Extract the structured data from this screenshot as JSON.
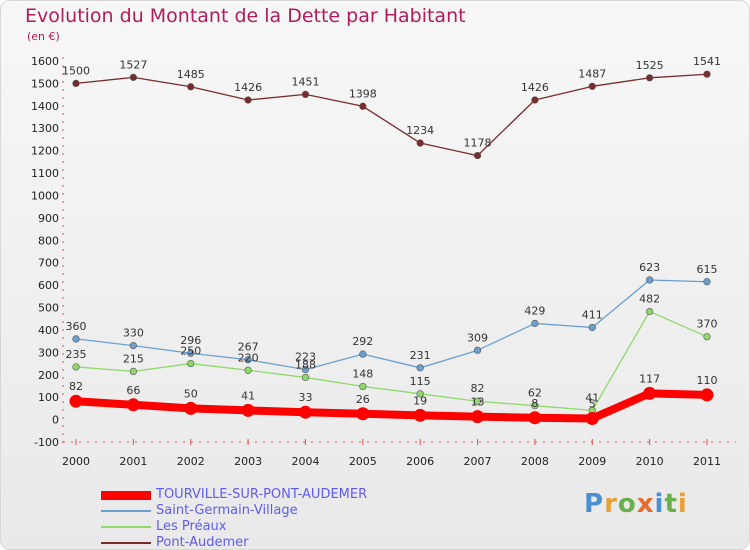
{
  "header": {
    "title": "Evolution du Montant de la Dette par Habitant",
    "subtitle": "(en €)"
  },
  "logo": {
    "text": "Proxiti",
    "colors": [
      "#4a8fd0",
      "#e8a13a",
      "#6ab04c",
      "#e86a2c",
      "#4a8fd0",
      "#6ab04c",
      "#e8a13a"
    ]
  },
  "chart_data": {
    "type": "line",
    "title": "Evolution du Montant de la Dette par Habitant",
    "subtitle": "(en €)",
    "xlabel": "",
    "ylabel": "",
    "x": [
      "2000",
      "2001",
      "2002",
      "2003",
      "2004",
      "2005",
      "2006",
      "2007",
      "2008",
      "2009",
      "2010",
      "2011"
    ],
    "ylim": [
      -100,
      1600
    ],
    "yticks": [
      -100,
      0,
      100,
      200,
      300,
      400,
      500,
      600,
      700,
      800,
      900,
      1000,
      1100,
      1200,
      1300,
      1400,
      1500,
      1600
    ],
    "grid": false,
    "legend_position": "bottom-left",
    "series": [
      {
        "name": "TOURVILLE-SUR-PONT-AUDEMER",
        "color": "#ff0000",
        "values": [
          82,
          66,
          50,
          41,
          33,
          26,
          19,
          13,
          8,
          5,
          117,
          110
        ],
        "labels": [
          "82",
          "66",
          "50",
          "41",
          "33",
          "26",
          "19",
          "13",
          "8",
          "5",
          "117",
          "110"
        ]
      },
      {
        "name": "Saint-Germain-Village",
        "color": "#6a9fd0",
        "values": [
          360,
          330,
          296,
          267,
          223,
          292,
          231,
          309,
          429,
          411,
          623,
          615
        ],
        "labels": [
          "360",
          "330",
          "296",
          "267",
          "223",
          "292",
          "231",
          "309",
          "429",
          "411",
          "623",
          "615"
        ]
      },
      {
        "name": "Les Préaux",
        "color": "#8ed96a",
        "values": [
          235,
          215,
          250,
          220,
          188,
          148,
          115,
          82,
          62,
          41,
          482,
          370
        ],
        "labels": [
          "235",
          "215",
          "250",
          "220",
          "188",
          "148",
          "115",
          "82",
          "62",
          "41",
          "482",
          "370"
        ]
      },
      {
        "name": "Pont-Audemer",
        "color": "#7a2c2c",
        "values": [
          1500,
          1527,
          1485,
          1426,
          1451,
          1398,
          1234,
          1178,
          1426,
          1487,
          1525,
          1541
        ],
        "labels": [
          "1500",
          "1527",
          "1485",
          "1426",
          "1451",
          "1398",
          "1234",
          "1178",
          "1426",
          "1487",
          "1525",
          "1541"
        ]
      }
    ]
  }
}
